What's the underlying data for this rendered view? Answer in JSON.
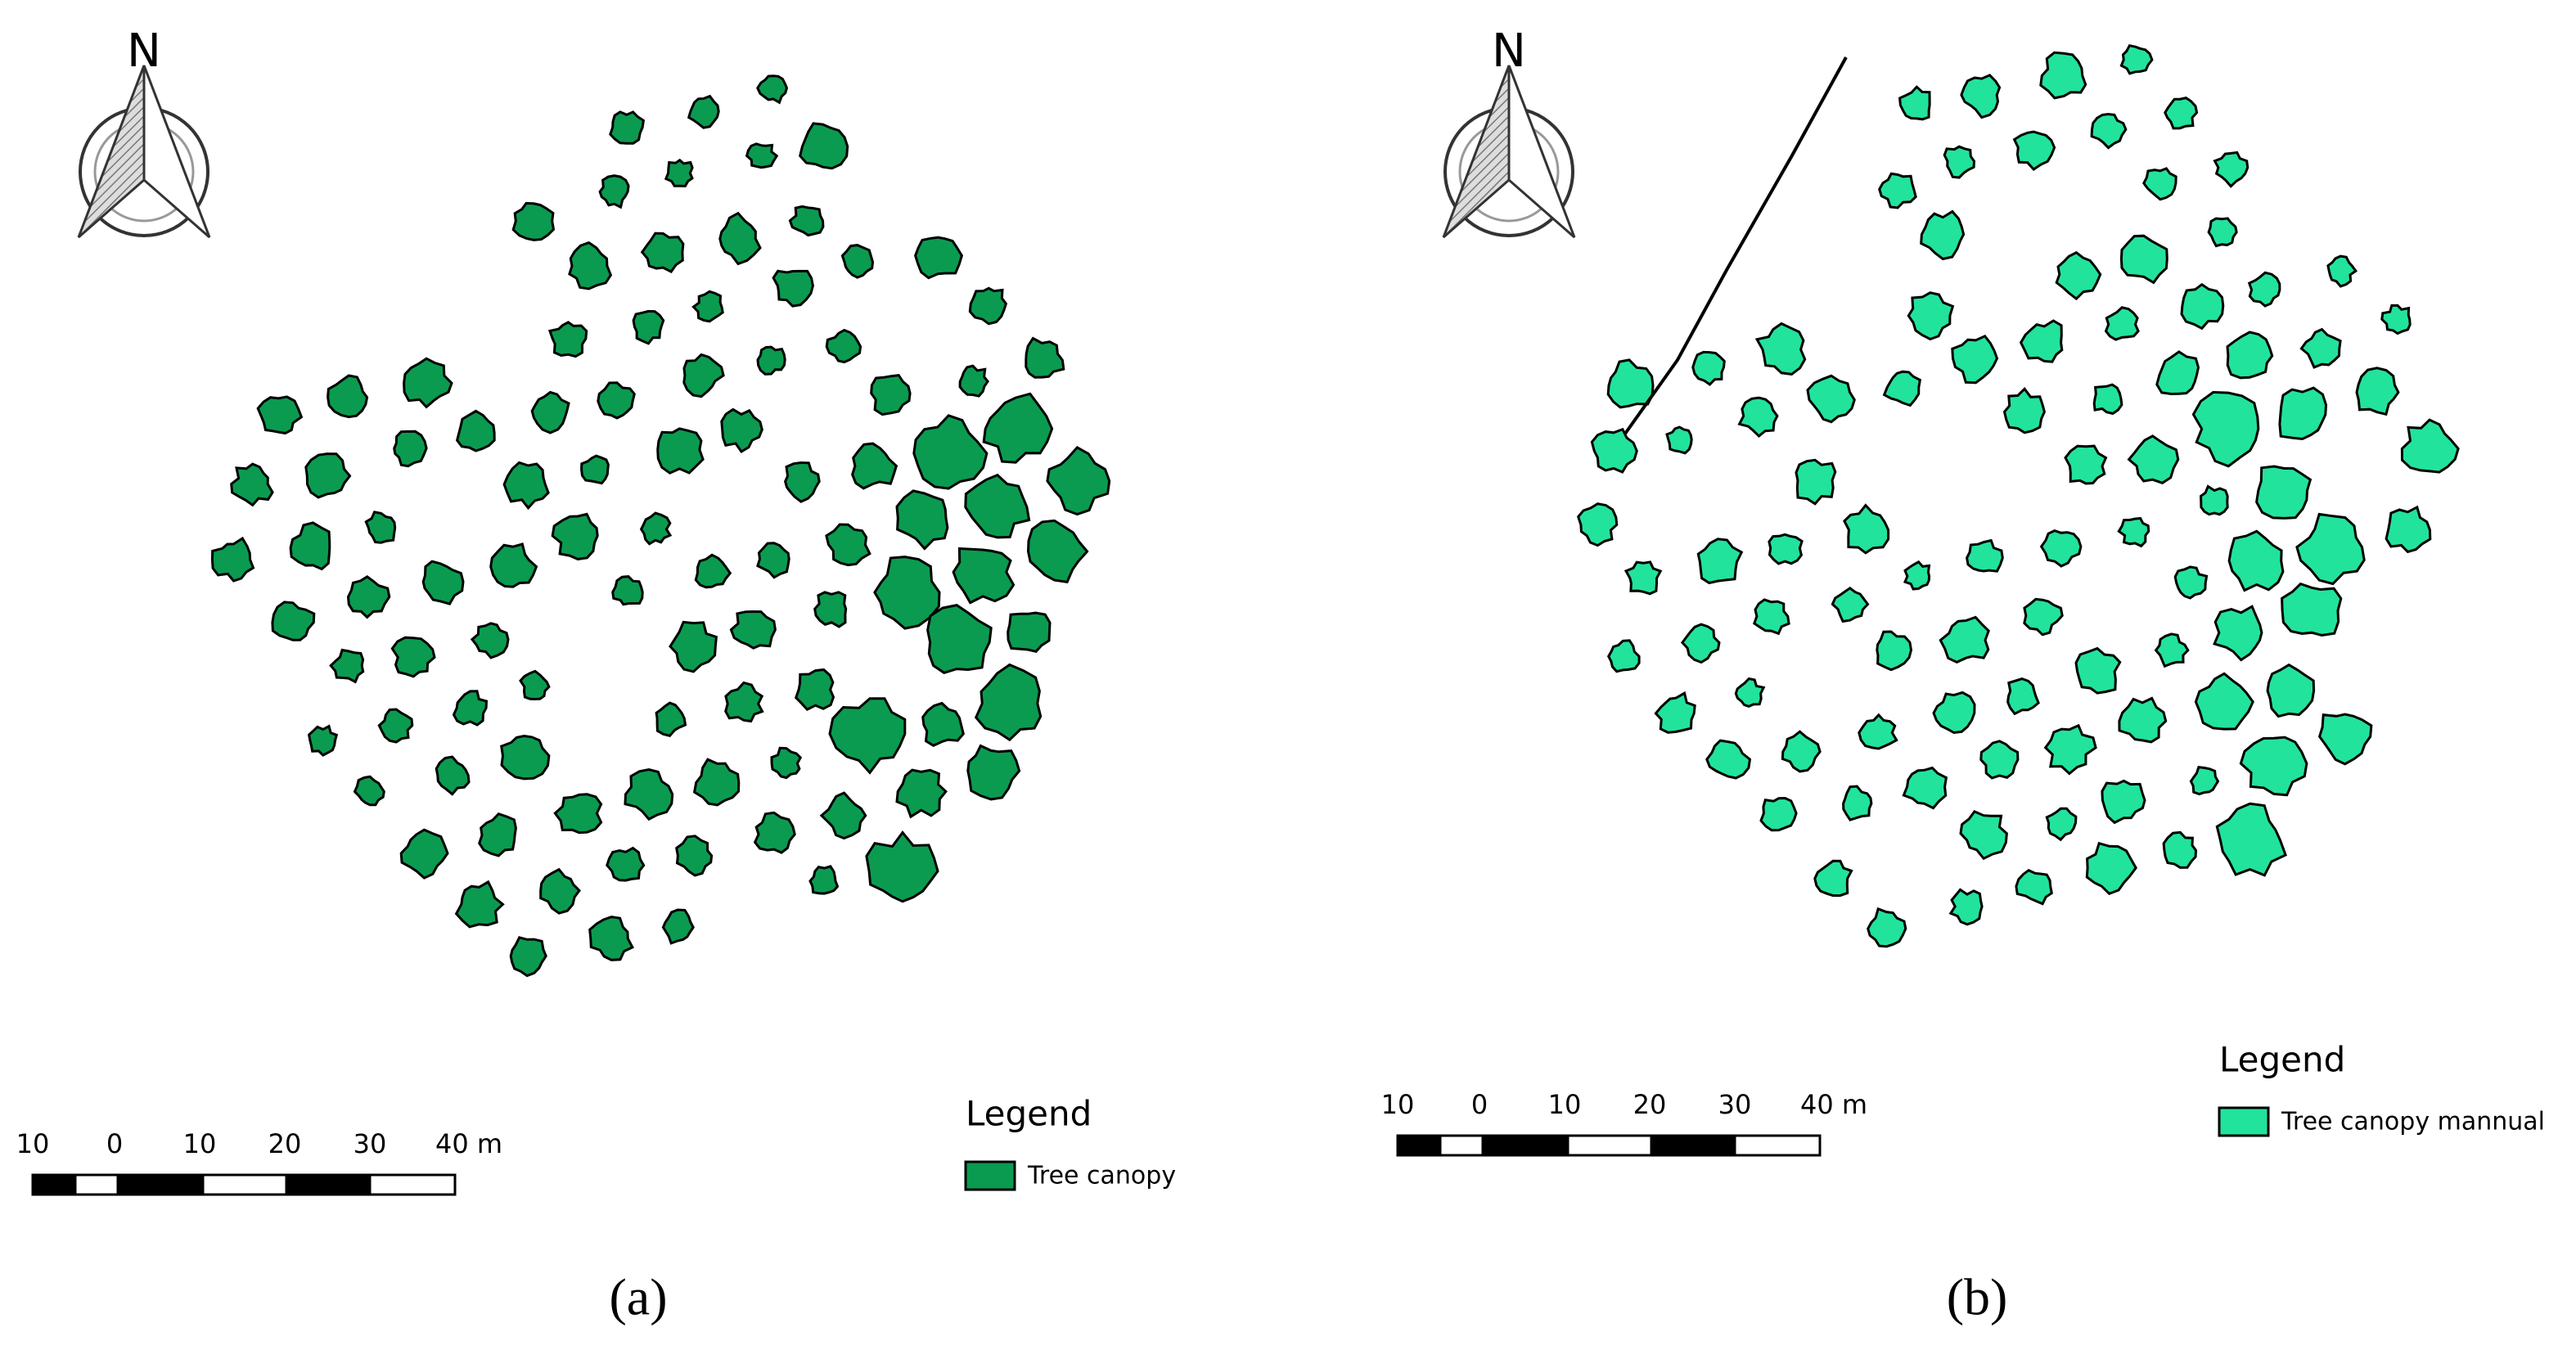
{
  "panels": [
    {
      "north": "N",
      "scale_bar": {
        "labels": [
          "10",
          "0",
          "10",
          "20",
          "30",
          "40 m"
        ]
      },
      "legend": {
        "title": "Legend",
        "item": "Tree canopy",
        "color": "#0a9b50"
      },
      "caption": "(a)"
    },
    {
      "north": "N",
      "scale_bar": {
        "labels": [
          "10",
          "0",
          "10",
          "20",
          "30",
          "40 m"
        ]
      },
      "legend": {
        "title": "Legend",
        "item": "Tree canopy mannual",
        "color": "#22e39c"
      },
      "caption": "(b)"
    }
  ]
}
